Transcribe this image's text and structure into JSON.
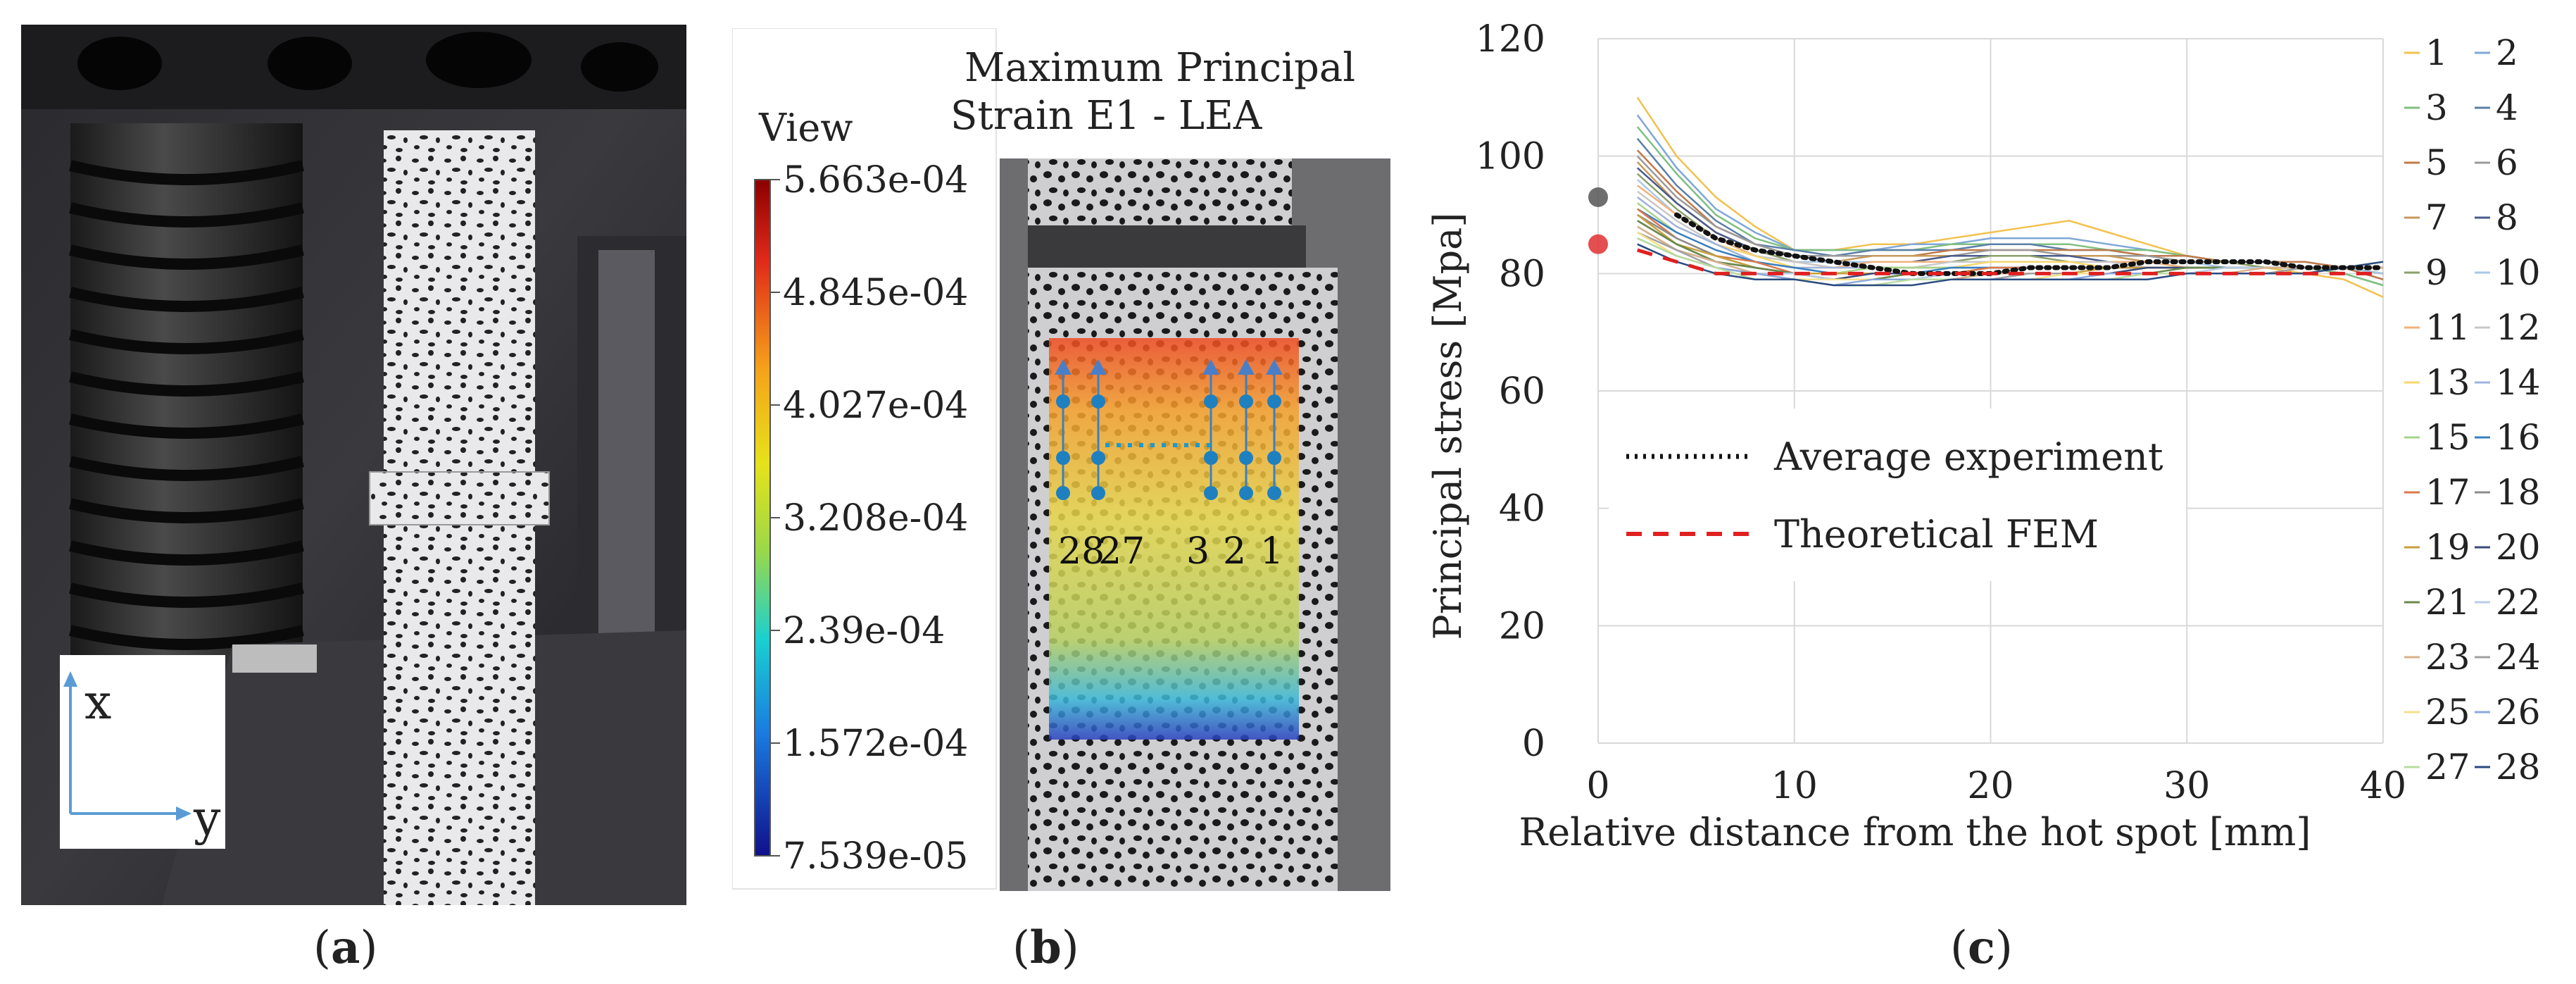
{
  "panel_a": {
    "label": "a",
    "axis_x": "x",
    "axis_y": "y"
  },
  "panel_b": {
    "title_line1": "Maximum Principal",
    "title_line2": "Strain E1 - LEA",
    "legend_title": "View",
    "legend_ticks": [
      "5.663e-04",
      "4.845e-04",
      "4.027e-04",
      "3.208e-04",
      "2.39e-04",
      "1.572e-04",
      "7.539e-05"
    ],
    "point_labels": [
      "28",
      "27",
      "3",
      "2",
      "1"
    ],
    "label": "b"
  },
  "panel_c": {
    "label": "c"
  },
  "chart_data": {
    "type": "line",
    "title": "",
    "xlabel": "Relative distance from the hot spot [mm]",
    "ylabel": "Principal stress [Mpa]",
    "xlim": [
      0,
      40
    ],
    "ylim": [
      0,
      120
    ],
    "xticks": [
      0,
      10,
      20,
      30,
      40
    ],
    "yticks": [
      0,
      20,
      40,
      60,
      80,
      100,
      120
    ],
    "grid": true,
    "legend_entries": [
      "Average experiment",
      "Theoretical FEM"
    ],
    "hot_spot_markers": [
      {
        "name": "experiment hot spot",
        "x": 0,
        "y": 93,
        "color": "#555555"
      },
      {
        "name": "FEM hot spot",
        "x": 0,
        "y": 85,
        "color": "#e03030"
      }
    ],
    "average_experiment": {
      "name": "Average experiment",
      "color": "#111111",
      "x": [
        4,
        6,
        8,
        10,
        12,
        14,
        16,
        18,
        20,
        22,
        24,
        26,
        28,
        30,
        32,
        34,
        36,
        38,
        40
      ],
      "y": [
        90,
        86,
        84,
        83,
        82,
        81,
        80,
        80,
        80,
        81,
        81,
        81,
        82,
        82,
        82,
        82,
        81,
        81,
        81
      ]
    },
    "theoretical_fem": {
      "name": "Theoretical FEM",
      "color": "#e02020",
      "x": [
        2,
        4,
        6,
        8,
        10,
        12,
        14,
        16,
        18,
        20,
        22,
        24,
        26,
        28,
        30,
        32,
        34,
        36,
        38,
        40
      ],
      "y": [
        84,
        82,
        80,
        80,
        80,
        80,
        80,
        80,
        80,
        80,
        80,
        80,
        80,
        80,
        80,
        80,
        80,
        80,
        80,
        80
      ]
    },
    "series_x": [
      2,
      4,
      6,
      8,
      10,
      12,
      14,
      16,
      18,
      20,
      22,
      24,
      26,
      28,
      30,
      32,
      34,
      36,
      38,
      40
    ],
    "series": [
      {
        "name": "1",
        "color": "#f2c14e",
        "values": [
          110,
          100,
          93,
          88,
          84,
          84,
          85,
          85,
          86,
          87,
          88,
          89,
          87,
          85,
          83,
          82,
          81,
          80,
          79,
          76
        ]
      },
      {
        "name": "2",
        "color": "#7fa7d6",
        "values": [
          107,
          98,
          91,
          87,
          84,
          84,
          84,
          85,
          85,
          86,
          86,
          86,
          85,
          84,
          83,
          82,
          82,
          81,
          80,
          78
        ]
      },
      {
        "name": "3",
        "color": "#7fbf7f",
        "values": [
          105,
          97,
          90,
          86,
          84,
          84,
          84,
          84,
          85,
          85,
          85,
          85,
          84,
          84,
          83,
          82,
          82,
          81,
          80,
          78
        ]
      },
      {
        "name": "4",
        "color": "#5a7fa8",
        "values": [
          103,
          95,
          89,
          85,
          84,
          83,
          84,
          84,
          84,
          85,
          85,
          84,
          84,
          83,
          83,
          82,
          82,
          82,
          81,
          79
        ]
      },
      {
        "name": "5",
        "color": "#c07a4a",
        "values": [
          101,
          94,
          88,
          85,
          83,
          83,
          83,
          83,
          84,
          84,
          84,
          84,
          84,
          83,
          83,
          82,
          82,
          82,
          81,
          79
        ]
      },
      {
        "name": "6",
        "color": "#9a9a9a",
        "values": [
          100,
          93,
          88,
          85,
          83,
          83,
          83,
          83,
          83,
          84,
          84,
          83,
          83,
          83,
          82,
          82,
          82,
          81,
          81,
          80
        ]
      },
      {
        "name": "7",
        "color": "#c79a5a",
        "values": [
          99,
          92,
          87,
          84,
          83,
          82,
          83,
          83,
          83,
          83,
          83,
          83,
          83,
          82,
          82,
          82,
          82,
          81,
          81,
          80
        ]
      },
      {
        "name": "8",
        "color": "#4a5a8a",
        "values": [
          98,
          92,
          87,
          84,
          83,
          82,
          82,
          82,
          83,
          83,
          83,
          83,
          82,
          82,
          82,
          82,
          82,
          81,
          81,
          80
        ]
      },
      {
        "name": "9",
        "color": "#8aa06a",
        "values": [
          97,
          91,
          86,
          84,
          82,
          82,
          82,
          82,
          82,
          83,
          83,
          82,
          82,
          82,
          82,
          82,
          81,
          81,
          81,
          80
        ]
      },
      {
        "name": "10",
        "color": "#a8c8e8",
        "values": [
          96,
          90,
          86,
          83,
          82,
          82,
          82,
          82,
          82,
          82,
          82,
          82,
          82,
          82,
          82,
          81,
          81,
          81,
          81,
          80
        ]
      },
      {
        "name": "11",
        "color": "#f2b27a",
        "values": [
          95,
          90,
          86,
          83,
          82,
          81,
          82,
          82,
          82,
          82,
          82,
          82,
          82,
          82,
          81,
          81,
          81,
          81,
          81,
          81
        ]
      },
      {
        "name": "12",
        "color": "#c8c8c8",
        "values": [
          94,
          89,
          85,
          83,
          82,
          81,
          81,
          81,
          82,
          82,
          82,
          82,
          82,
          81,
          81,
          81,
          81,
          81,
          81,
          81
        ]
      },
      {
        "name": "13",
        "color": "#f5d76e",
        "values": [
          93,
          88,
          85,
          83,
          81,
          81,
          81,
          81,
          81,
          82,
          82,
          82,
          81,
          81,
          81,
          81,
          81,
          81,
          81,
          81
        ]
      },
      {
        "name": "14",
        "color": "#9fb3e0",
        "values": [
          93,
          88,
          85,
          82,
          81,
          81,
          81,
          81,
          81,
          81,
          81,
          81,
          81,
          81,
          81,
          81,
          81,
          81,
          81,
          81
        ]
      },
      {
        "name": "15",
        "color": "#a9d38a",
        "values": [
          92,
          87,
          84,
          82,
          81,
          80,
          81,
          81,
          81,
          81,
          81,
          81,
          81,
          81,
          81,
          81,
          81,
          81,
          81,
          81
        ]
      },
      {
        "name": "16",
        "color": "#3a7fc0",
        "values": [
          91,
          87,
          84,
          82,
          81,
          80,
          80,
          80,
          81,
          81,
          81,
          81,
          81,
          81,
          81,
          81,
          81,
          81,
          81,
          81
        ]
      },
      {
        "name": "17",
        "color": "#d9784a",
        "values": [
          91,
          86,
          83,
          82,
          80,
          80,
          80,
          80,
          80,
          81,
          81,
          81,
          81,
          81,
          81,
          81,
          81,
          81,
          81,
          81
        ]
      },
      {
        "name": "18",
        "color": "#8c8c8c",
        "values": [
          90,
          86,
          83,
          81,
          80,
          80,
          80,
          80,
          80,
          80,
          81,
          81,
          81,
          81,
          81,
          81,
          81,
          81,
          81,
          81
        ]
      },
      {
        "name": "19",
        "color": "#c8a03a",
        "values": [
          90,
          85,
          83,
          81,
          80,
          80,
          80,
          80,
          80,
          80,
          80,
          80,
          81,
          81,
          81,
          81,
          81,
          81,
          81,
          81
        ]
      },
      {
        "name": "20",
        "color": "#3a4a7a",
        "values": [
          89,
          85,
          82,
          81,
          80,
          79,
          80,
          80,
          80,
          80,
          80,
          80,
          80,
          81,
          81,
          81,
          81,
          81,
          81,
          81
        ]
      },
      {
        "name": "21",
        "color": "#6a8a4a",
        "values": [
          89,
          85,
          82,
          81,
          80,
          79,
          79,
          80,
          80,
          80,
          80,
          80,
          80,
          80,
          81,
          81,
          81,
          81,
          81,
          81
        ]
      },
      {
        "name": "22",
        "color": "#b8cce8",
        "values": [
          88,
          84,
          82,
          80,
          80,
          79,
          79,
          79,
          80,
          80,
          80,
          80,
          80,
          80,
          80,
          81,
          81,
          81,
          81,
          81
        ]
      },
      {
        "name": "23",
        "color": "#d8b08a",
        "values": [
          88,
          84,
          82,
          80,
          79,
          79,
          79,
          79,
          79,
          80,
          80,
          80,
          80,
          80,
          80,
          80,
          81,
          81,
          81,
          81
        ]
      },
      {
        "name": "24",
        "color": "#a0a0a0",
        "values": [
          87,
          84,
          81,
          80,
          79,
          79,
          79,
          79,
          79,
          79,
          80,
          80,
          80,
          80,
          80,
          80,
          80,
          81,
          81,
          82
        ]
      },
      {
        "name": "25",
        "color": "#f5e08a",
        "values": [
          87,
          83,
          81,
          80,
          79,
          79,
          79,
          79,
          79,
          79,
          79,
          80,
          80,
          80,
          80,
          80,
          80,
          80,
          81,
          82
        ]
      },
      {
        "name": "26",
        "color": "#8aa8dc",
        "values": [
          86,
          83,
          81,
          80,
          79,
          78,
          79,
          79,
          79,
          79,
          79,
          79,
          80,
          80,
          80,
          80,
          80,
          80,
          81,
          82
        ]
      },
      {
        "name": "27",
        "color": "#b8dca0",
        "values": [
          86,
          83,
          81,
          79,
          79,
          78,
          78,
          79,
          79,
          79,
          79,
          79,
          79,
          80,
          80,
          80,
          80,
          80,
          81,
          82
        ]
      },
      {
        "name": "28",
        "color": "#2a4a80",
        "values": [
          85,
          82,
          80,
          79,
          79,
          78,
          78,
          78,
          79,
          79,
          79,
          79,
          79,
          79,
          80,
          80,
          80,
          80,
          81,
          82
        ]
      }
    ]
  }
}
